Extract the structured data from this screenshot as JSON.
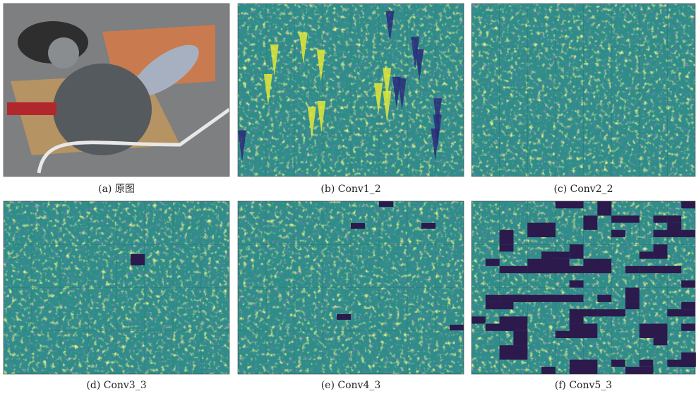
{
  "panels": [
    {
      "caption": "(a) 原图"
    },
    {
      "caption": "(b) Conv1_2"
    },
    {
      "caption": "(c) Conv2_2"
    },
    {
      "caption": "(d) Conv3_3"
    },
    {
      "caption": "(e) Conv4_3"
    },
    {
      "caption": "(f) Conv5_3"
    }
  ]
}
